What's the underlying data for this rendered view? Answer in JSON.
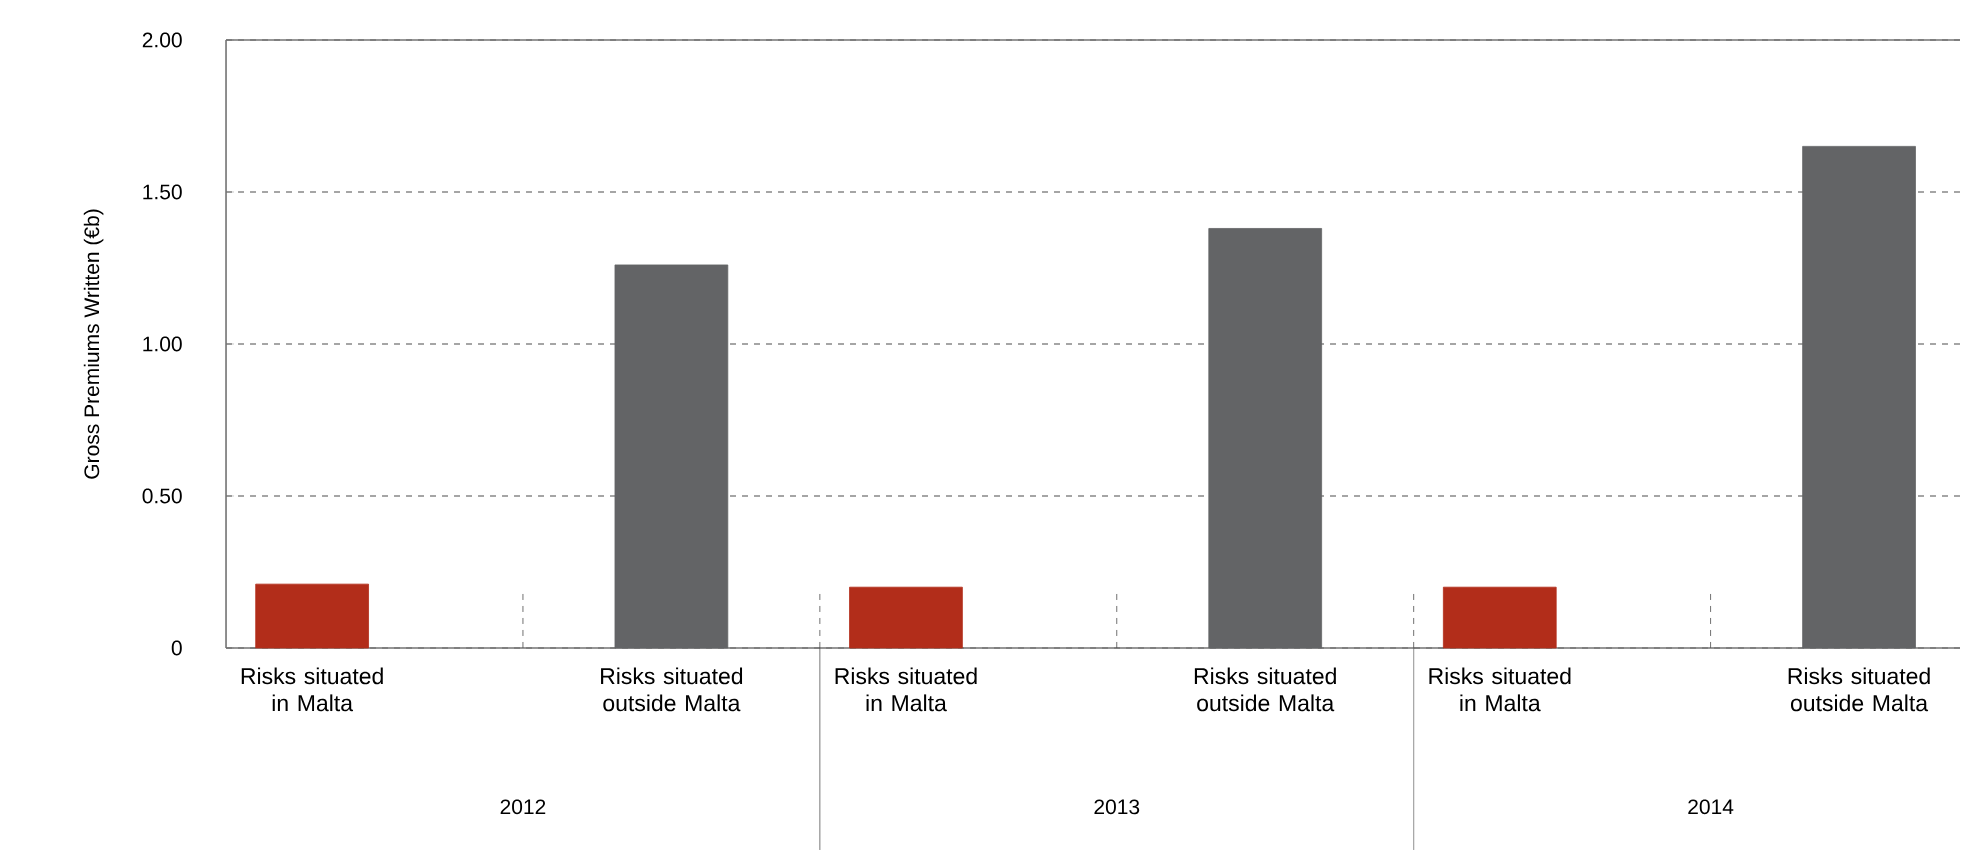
{
  "chart_data": {
    "type": "bar",
    "ylabel": "Gross Premiums Written (€b)",
    "categories": [
      "2012",
      "2013",
      "2014"
    ],
    "series": [
      {
        "name": "Risks situated in Malta",
        "color": "#b22d1a",
        "values": [
          0.21,
          0.2,
          0.2
        ]
      },
      {
        "name": "Risks situated outside Malta",
        "color": "#636466",
        "values": [
          1.26,
          1.38,
          1.65
        ]
      }
    ],
    "ylim": [
      0,
      2
    ],
    "yticks": [
      0,
      {
        "value": 0.5,
        "label": "0.50"
      },
      {
        "value": 1,
        "label": "1.00"
      },
      {
        "value": 1.5,
        "label": "1.50"
      },
      {
        "value": 2,
        "label": "2.00"
      }
    ],
    "grid": "y"
  }
}
